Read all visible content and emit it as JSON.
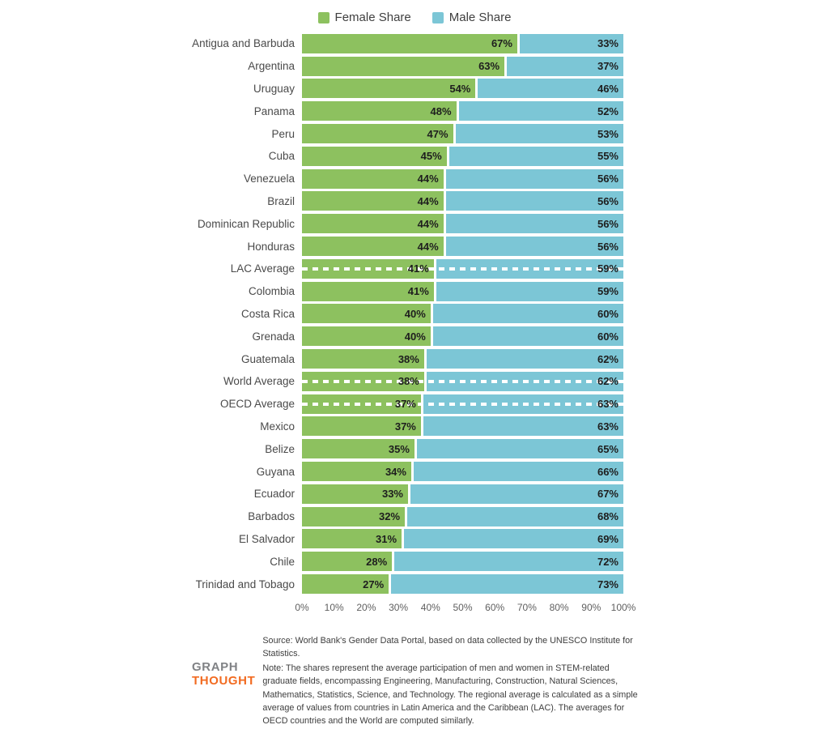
{
  "legend": {
    "female_label": "Female Share",
    "male_label": "Male Share"
  },
  "colors": {
    "female": "#8dc15f",
    "male": "#7cc6d6",
    "logo_gray": "#808285",
    "logo_orange": "#f26b21"
  },
  "chart_data": {
    "type": "bar",
    "orientation": "horizontal",
    "stacked": true,
    "legend_position": "top",
    "value_suffix": "%",
    "xlim": [
      0,
      100
    ],
    "grid": false,
    "categories": [
      "Antigua and Barbuda",
      "Argentina",
      "Uruguay",
      "Panama",
      "Peru",
      "Cuba",
      "Venezuela",
      "Brazil",
      "Dominican Republic",
      "Honduras",
      "LAC Average",
      "Colombia",
      "Costa Rica",
      "Grenada",
      "Guatemala",
      "World Average",
      "OECD Average",
      "Mexico",
      "Belize",
      "Guyana",
      "Ecuador",
      "Barbados",
      "El Salvador",
      "Chile",
      "Trinidad and Tobago"
    ],
    "series": [
      {
        "name": "Female Share",
        "values": [
          67,
          63,
          54,
          48,
          47,
          45,
          44,
          44,
          44,
          44,
          41,
          41,
          40,
          40,
          38,
          38,
          37,
          37,
          35,
          34,
          33,
          32,
          31,
          28,
          27
        ]
      },
      {
        "name": "Male Share",
        "values": [
          33,
          37,
          46,
          52,
          53,
          55,
          56,
          56,
          56,
          56,
          59,
          59,
          60,
          60,
          62,
          62,
          63,
          63,
          65,
          66,
          67,
          68,
          69,
          72,
          73
        ]
      }
    ],
    "dashed_categories": [
      "LAC Average",
      "World Average",
      "OECD Average"
    ],
    "x_ticks": [
      "0%",
      "10%",
      "20%",
      "30%",
      "40%",
      "50%",
      "60%",
      "70%",
      "80%",
      "90%",
      "100%"
    ]
  },
  "footer": {
    "source": "Source: World Bank's Gender Data Portal, based on data collected by the UNESCO Institute for Statistics.",
    "note": "Note: The shares represent the average participation of men and women in STEM-related graduate fields, encompassing Engineering, Manufacturing, Construction, Natural Sciences, Mathematics, Statistics, Science, and Technology. The regional average is calculated as a simple average of values from countries in Latin America and the Caribbean (LAC). The averages for OECD countries and the World are computed similarly.",
    "logo": {
      "top": "GRAPH",
      "bottom": "THOUGHT"
    }
  }
}
